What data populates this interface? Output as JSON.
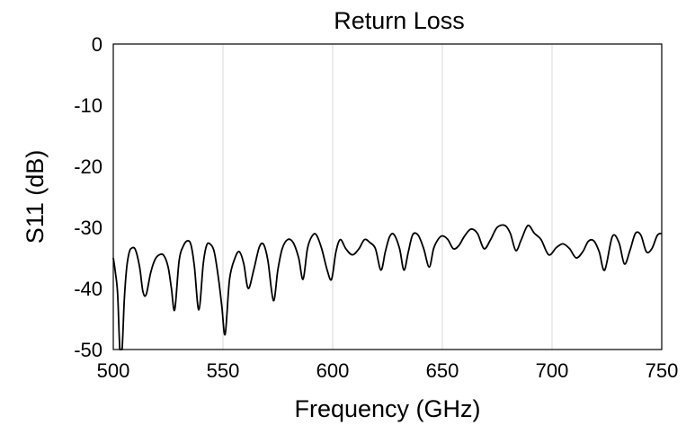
{
  "chart_data": {
    "type": "line",
    "title": "Return Loss",
    "xlabel": "Frequency (GHz)",
    "ylabel": "S11 (dB)",
    "xlim": [
      500,
      750
    ],
    "ylim": [
      -50,
      0
    ],
    "xticks": [
      500,
      550,
      600,
      650,
      700,
      750
    ],
    "yticks": [
      0,
      -10,
      -20,
      -30,
      -40,
      -50
    ],
    "grid": "vertical",
    "series": [
      {
        "x": [
          500.0,
          501.0,
          502.0,
          503.0,
          504.0,
          505.0,
          506.0,
          507.0,
          508.0,
          510.0,
          512.0,
          513.5,
          515.0,
          517.0,
          519.0,
          521.0,
          523.0,
          525.0,
          526.5,
          528.0,
          530.0,
          532.0,
          534.0,
          535.5,
          537.0,
          539.0,
          541.0,
          542.5,
          544.0,
          546.0,
          548.0,
          549.5,
          551.0,
          553.0,
          555.5,
          557.5,
          559.5,
          561.5,
          564.0,
          566.5,
          568.5,
          570.5,
          573.0,
          575.0,
          577.0,
          579.5,
          582.0,
          584.5,
          586.5,
          588.5,
          590.5,
          592.5,
          595.0,
          597.5,
          599.5,
          601.5,
          603.5,
          606.0,
          609.0,
          612.0,
          614.5,
          617.0,
          619.5,
          622.0,
          624.0,
          626.0,
          628.0,
          630.5,
          632.5,
          634.5,
          636.5,
          639.0,
          641.5,
          644.0,
          646.0,
          648.0,
          650.0,
          652.5,
          655.0,
          657.5,
          660.0,
          663.0,
          666.0,
          669.0,
          672.0,
          675.0,
          678.5,
          681.0,
          683.5,
          686.0,
          689.0,
          692.0,
          695.0,
          698.5,
          702.0,
          705.0,
          708.0,
          711.0,
          714.0,
          716.5,
          719.0,
          721.5,
          724.0,
          727.5,
          730.5,
          733.0,
          735.5,
          738.0,
          740.5,
          743.0,
          745.5,
          748.0,
          750.0
        ],
        "y": [
          -35.0,
          -37.5,
          -41.0,
          -50.0,
          -50.0,
          -42.0,
          -37.0,
          -34.5,
          -33.5,
          -33.6,
          -36.5,
          -40.5,
          -41.0,
          -37.5,
          -35.3,
          -34.5,
          -34.6,
          -36.5,
          -40.0,
          -43.5,
          -35.5,
          -33.0,
          -32.2,
          -33.0,
          -36.5,
          -43.5,
          -36.0,
          -33.0,
          -32.7,
          -34.0,
          -38.5,
          -43.0,
          -47.5,
          -38.5,
          -35.0,
          -34.0,
          -36.0,
          -40.0,
          -37.0,
          -33.3,
          -32.8,
          -35.5,
          -42.0,
          -37.0,
          -33.5,
          -32.0,
          -32.5,
          -35.0,
          -38.5,
          -33.5,
          -31.5,
          -31.2,
          -33.5,
          -37.0,
          -38.5,
          -34.0,
          -32.0,
          -33.5,
          -34.5,
          -33.5,
          -32.0,
          -32.5,
          -33.5,
          -37.0,
          -34.0,
          -31.5,
          -31.2,
          -33.5,
          -37.0,
          -34.0,
          -31.2,
          -31.3,
          -33.5,
          -36.5,
          -33.5,
          -32.0,
          -31.4,
          -32.0,
          -33.5,
          -33.0,
          -31.5,
          -30.3,
          -31.0,
          -33.5,
          -32.0,
          -30.0,
          -29.7,
          -31.0,
          -33.8,
          -32.0,
          -29.7,
          -31.0,
          -32.0,
          -34.5,
          -33.3,
          -32.7,
          -33.5,
          -35.0,
          -34.0,
          -32.3,
          -32.2,
          -34.0,
          -37.0,
          -31.5,
          -32.5,
          -36.0,
          -33.8,
          -31.0,
          -31.3,
          -34.0,
          -33.5,
          -31.3,
          -31.0
        ]
      }
    ]
  }
}
